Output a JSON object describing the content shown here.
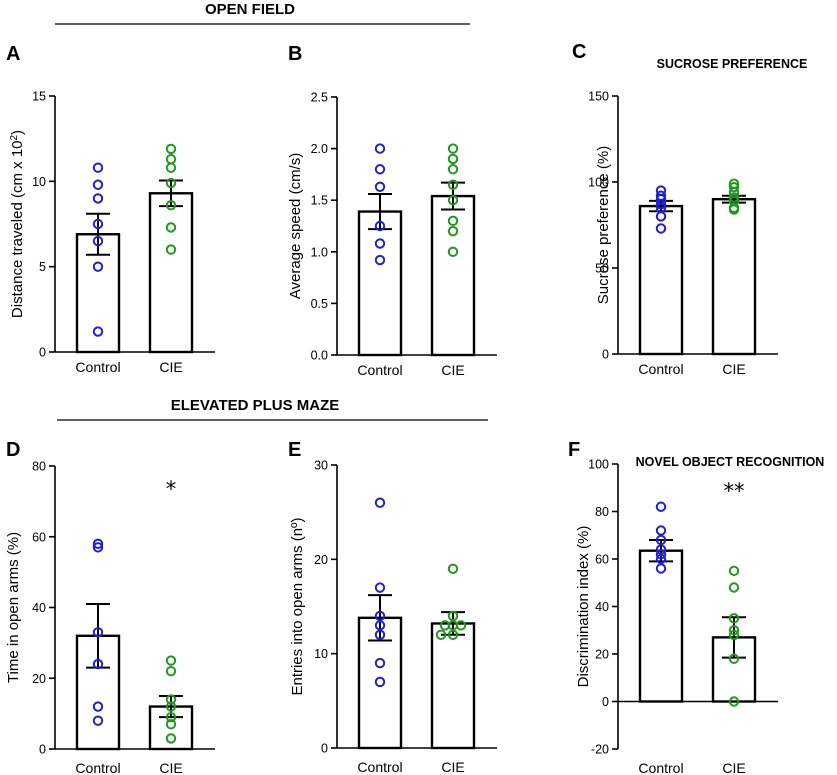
{
  "sections": [
    {
      "title": "OPEN FIELD"
    },
    {
      "title": "ELEVATED PLUS MAZE"
    }
  ],
  "colors": {
    "control": "#1f1fd6",
    "cie": "#1e9a1e",
    "bar": "#ffffff",
    "axis": "#000000"
  },
  "chart_data": [
    {
      "type": "bar",
      "letter": "A",
      "title": "",
      "ylabel": "Distance traveled (cm x 10",
      "ylabel_sup": "2",
      "ylabel_end": ")",
      "ylim": [
        0,
        15
      ],
      "yticks": [
        0,
        5,
        10,
        15
      ],
      "tick_labels": [
        "0",
        "5",
        "10",
        "15"
      ],
      "categories": [
        "Control",
        "CIE"
      ],
      "means": [
        6.9,
        9.3
      ],
      "sems": [
        1.2,
        0.75
      ],
      "points": [
        [
          10.8,
          9.8,
          9.0,
          7.5,
          6.5,
          5.0,
          1.2
        ],
        [
          11.9,
          11.3,
          10.8,
          9.9,
          8.6,
          7.3,
          6.0
        ]
      ],
      "significance": [
        "",
        ""
      ]
    },
    {
      "type": "bar",
      "letter": "B",
      "title": "",
      "ylabel": "Average speed (cm/s)",
      "ylim": [
        0,
        2.5
      ],
      "yticks": [
        0,
        0.5,
        1,
        1.5,
        2,
        2.5
      ],
      "tick_labels": [
        "0.0",
        "0.5",
        "1.0",
        "1.5",
        "2.0",
        "2.5"
      ],
      "categories": [
        "Control",
        "CIE"
      ],
      "means": [
        1.39,
        1.54
      ],
      "sems": [
        0.17,
        0.13
      ],
      "points": [
        [
          2.0,
          1.8,
          1.63,
          1.25,
          1.08,
          0.92
        ],
        [
          2.0,
          1.9,
          1.8,
          1.65,
          1.5,
          1.3,
          1.2,
          1.0
        ]
      ],
      "significance": [
        "",
        ""
      ]
    },
    {
      "type": "bar",
      "letter": "C",
      "title": "SUCROSE PREFERENCE",
      "ylabel": "Sucrose preference (%)",
      "ylim": [
        0,
        150
      ],
      "yticks": [
        0,
        50,
        100,
        150
      ],
      "tick_labels": [
        "0",
        "50",
        "100",
        "150"
      ],
      "categories": [
        "Control",
        "CIE"
      ],
      "means": [
        86,
        90
      ],
      "sems": [
        3,
        2
      ],
      "points": [
        [
          95,
          92,
          90,
          87,
          85,
          80,
          73
        ],
        [
          99,
          97,
          94,
          91,
          89,
          85,
          84
        ]
      ],
      "significance": [
        "",
        ""
      ]
    },
    {
      "type": "bar",
      "letter": "D",
      "title": "",
      "ylabel": "Time in open arms (%)",
      "ylim": [
        0,
        80
      ],
      "yticks": [
        0,
        20,
        40,
        60,
        80
      ],
      "tick_labels": [
        "0",
        "20",
        "40",
        "60",
        "80"
      ],
      "categories": [
        "Control",
        "CIE"
      ],
      "means": [
        32,
        12
      ],
      "sems": [
        9,
        3
      ],
      "points": [
        [
          58,
          57,
          33,
          24,
          12,
          8
        ],
        [
          25,
          22,
          14,
          12,
          9,
          7,
          3
        ]
      ],
      "significance": [
        "",
        "*"
      ]
    },
    {
      "type": "bar",
      "letter": "E",
      "title": "",
      "ylabel": "Entries into open arms (nº)",
      "ylim": [
        0,
        30
      ],
      "yticks": [
        0,
        10,
        20,
        30
      ],
      "tick_labels": [
        "0",
        "10",
        "20",
        "30"
      ],
      "categories": [
        "Control",
        "CIE"
      ],
      "means": [
        13.8,
        13.2
      ],
      "sems": [
        2.4,
        1.2
      ],
      "points": [
        [
          26,
          17,
          14,
          13,
          12,
          9,
          7
        ],
        [
          19,
          14,
          13,
          13,
          13,
          12,
          12
        ]
      ],
      "significance": [
        "",
        ""
      ]
    },
    {
      "type": "bar",
      "letter": "F",
      "title": "NOVEL OBJECT RECOGNITION",
      "ylabel": "Discrimination index (%)",
      "ylim": [
        -20,
        100
      ],
      "yticks": [
        -20,
        0,
        20,
        40,
        60,
        80,
        100
      ],
      "tick_labels": [
        "-20",
        "0",
        "20",
        "40",
        "60",
        "80",
        "100"
      ],
      "categories": [
        "Control",
        "CIE"
      ],
      "means": [
        63.5,
        27
      ],
      "sems": [
        4.5,
        8.5
      ],
      "points": [
        [
          82,
          72,
          68,
          64,
          62,
          60,
          56
        ],
        [
          55,
          48,
          35,
          30,
          28,
          18,
          0
        ]
      ],
      "significance": [
        "",
        "**"
      ]
    }
  ]
}
